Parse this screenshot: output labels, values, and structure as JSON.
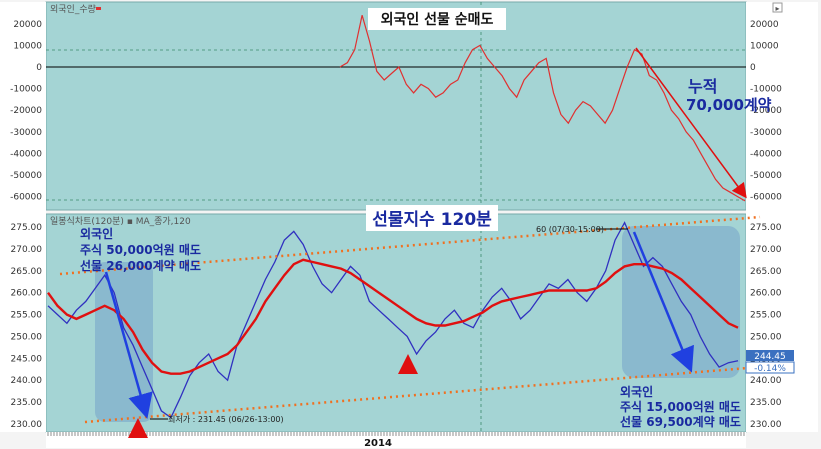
{
  "panel_top": {
    "header_label": "외국인_수량",
    "title": "외국인 선물 순매도",
    "annotation_line1": "누적",
    "annotation_line2": "70,000계약"
  },
  "panel_bottom": {
    "header_label": "일봉식차트(120분) ▪ MA_종가,120",
    "title": "선물지수 120분",
    "high_label": "60 (07/30-15:00)",
    "low_label": "최저가 : 231.45 (06/26-13:00)",
    "last_price": "244.45",
    "last_change": "-0.14%",
    "left_note": [
      "외국인",
      "주식 50,000억원 매도",
      "선물 26,000계약 매도"
    ],
    "right_note": [
      "외국인",
      "주식 15,000억원 매도",
      "선물 69,500계약 매도"
    ],
    "year_label": "2014"
  },
  "colors": {
    "price_line": "#3030c0",
    "price_wick": "#d03030",
    "ma_line": "#e01010",
    "top_line": "#e03030",
    "trend_dots": "#f07020",
    "arrow_blue": "#2040e0",
    "highlight_box": "#6a9ac8",
    "plot_bg": "#9fd0d0"
  },
  "chart_data": [
    {
      "type": "line",
      "title": "외국인 선물 순매도",
      "ylim": [
        -70000,
        25000
      ],
      "yticks": [
        20000,
        10000,
        0,
        -10000,
        -20000,
        -30000,
        -40000,
        -50000,
        -60000
      ],
      "series": [
        {
          "values": [
            0,
            2000,
            8000,
            24000,
            12000,
            -2000,
            -6000,
            -3000,
            0,
            -8000,
            -12000,
            -8000,
            -10000,
            -14000,
            -12000,
            -8000,
            -6000,
            2000,
            8000,
            10000,
            4000,
            0,
            -4000,
            -10000,
            -14000,
            -6000,
            -2000,
            2000,
            4000,
            -12000,
            -22000,
            -26000,
            -20000,
            -16000,
            -18000,
            -22000,
            -26000,
            -20000,
            -10000,
            0,
            8000,
            6000,
            -4000,
            -6000,
            -12000,
            -20000,
            -24000,
            -30000,
            -34000,
            -40000,
            -46000,
            -52000,
            -56000,
            -58000,
            -60000,
            -62000
          ]
        }
      ]
    },
    {
      "type": "line",
      "title": "선물지수 120분",
      "ylim": [
        228,
        278
      ],
      "yticks": [
        230,
        235,
        240,
        245,
        250,
        255,
        260,
        265,
        270,
        275
      ],
      "series": [
        {
          "name": "price",
          "values": [
            257,
            255,
            253,
            256,
            258,
            261,
            264,
            260,
            252,
            248,
            243,
            238,
            233,
            231.45,
            236,
            241,
            244,
            246,
            242,
            240,
            248,
            253,
            258,
            263,
            267,
            272,
            274,
            271,
            266,
            262,
            260,
            263,
            266,
            264,
            258,
            256,
            254,
            252,
            250,
            246,
            249,
            251,
            254,
            256,
            253,
            252,
            256,
            259,
            261,
            258,
            254,
            256,
            259,
            262,
            261,
            263,
            260,
            258,
            261,
            265,
            272,
            276,
            271,
            266,
            268,
            266,
            262,
            258,
            255,
            250,
            246,
            243,
            244,
            244.45
          ]
        },
        {
          "name": "MA_종가,120",
          "values": [
            260,
            257,
            255,
            254,
            255,
            256,
            257,
            256,
            254,
            251,
            247,
            244,
            242,
            241.5,
            241.5,
            242,
            243,
            244,
            245,
            246,
            248,
            251,
            254,
            258,
            261,
            264,
            266.5,
            267.5,
            267,
            266.5,
            266,
            265.5,
            264.5,
            263,
            261.5,
            260,
            258.5,
            257,
            255.5,
            254,
            253,
            252.5,
            252.5,
            253,
            253.5,
            254.5,
            255.5,
            257,
            258,
            258.5,
            259,
            259.5,
            260,
            260.5,
            260.5,
            260.5,
            260.5,
            260.5,
            261,
            262.5,
            264.5,
            266,
            266.5,
            266.5,
            266,
            265.5,
            264.5,
            263,
            261,
            259,
            257,
            255,
            253,
            252
          ]
        }
      ]
    }
  ]
}
